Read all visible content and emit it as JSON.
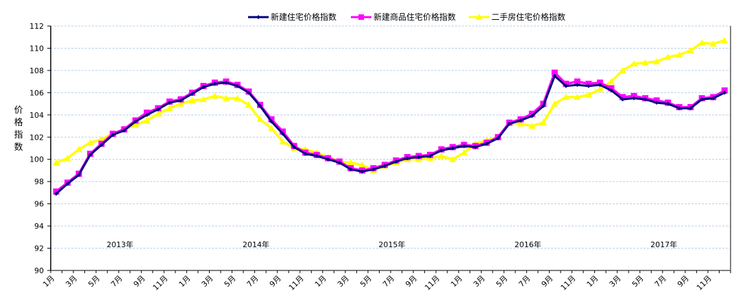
{
  "chart_data": {
    "type": "line",
    "title": "",
    "ylabel": "价格指数",
    "xlabel": "",
    "ylim": [
      90,
      112
    ],
    "yticks": [
      90,
      92,
      94,
      96,
      98,
      100,
      102,
      104,
      106,
      108,
      110,
      112
    ],
    "grid": true,
    "legend_position": "top",
    "x_tick_labels": [
      "1月",
      "3月",
      "5月",
      "7月",
      "9月",
      "11月",
      "1月",
      "3月",
      "5月",
      "7月",
      "9月",
      "11月",
      "1月",
      "3月",
      "5月",
      "7月",
      "9月",
      "11月",
      "1月",
      "3月",
      "5月",
      "7月",
      "9月",
      "11月",
      "1月",
      "3月",
      "5月",
      "7月",
      "9月",
      "11月"
    ],
    "year_labels": [
      "2013年",
      "2014年",
      "2015年",
      "2016年",
      "2017年"
    ],
    "x": [
      "2013-01",
      "2013-02",
      "2013-03",
      "2013-04",
      "2013-05",
      "2013-06",
      "2013-07",
      "2013-08",
      "2013-09",
      "2013-10",
      "2013-11",
      "2013-12",
      "2014-01",
      "2014-02",
      "2014-03",
      "2014-04",
      "2014-05",
      "2014-06",
      "2014-07",
      "2014-08",
      "2014-09",
      "2014-10",
      "2014-11",
      "2014-12",
      "2015-01",
      "2015-02",
      "2015-03",
      "2015-04",
      "2015-05",
      "2015-06",
      "2015-07",
      "2015-08",
      "2015-09",
      "2015-10",
      "2015-11",
      "2015-12",
      "2016-01",
      "2016-02",
      "2016-03",
      "2016-04",
      "2016-05",
      "2016-06",
      "2016-07",
      "2016-08",
      "2016-09",
      "2016-10",
      "2016-11",
      "2016-12",
      "2017-01",
      "2017-02",
      "2017-03",
      "2017-04",
      "2017-05",
      "2017-06",
      "2017-07",
      "2017-08",
      "2017-09",
      "2017-10",
      "2017-11",
      "2017-12"
    ],
    "series": [
      {
        "name": "新建住宅价格指数",
        "color": "#000080",
        "marker": "diamond",
        "values": [
          96.9,
          97.8,
          98.6,
          100.4,
          101.3,
          102.2,
          102.6,
          103.4,
          104.0,
          104.5,
          105.1,
          105.3,
          105.9,
          106.5,
          106.8,
          106.9,
          106.6,
          106.0,
          104.8,
          103.4,
          102.3,
          101.1,
          100.5,
          100.3,
          100.0,
          99.7,
          99.1,
          98.9,
          99.1,
          99.4,
          99.8,
          100.1,
          100.2,
          100.3,
          100.8,
          101.0,
          101.2,
          101.1,
          101.4,
          101.9,
          103.2,
          103.5,
          103.9,
          104.8,
          107.5,
          106.6,
          106.7,
          106.6,
          106.7,
          106.2,
          105.4,
          105.5,
          105.4,
          105.1,
          105.0,
          104.6,
          104.6,
          105.4,
          105.5,
          106.0
        ]
      },
      {
        "name": "新建商品住宅价格指数",
        "color": "#FF00FF",
        "marker": "square",
        "values": [
          97.1,
          97.9,
          98.7,
          100.5,
          101.4,
          102.3,
          102.7,
          103.5,
          104.2,
          104.6,
          105.2,
          105.4,
          106.0,
          106.6,
          106.9,
          107.0,
          106.7,
          106.1,
          104.9,
          103.6,
          102.5,
          101.2,
          100.6,
          100.4,
          100.1,
          99.8,
          99.2,
          99.0,
          99.2,
          99.5,
          99.9,
          100.2,
          100.3,
          100.4,
          100.9,
          101.1,
          101.3,
          101.2,
          101.5,
          102.0,
          103.3,
          103.6,
          104.1,
          105.0,
          107.8,
          106.8,
          107.0,
          106.8,
          106.9,
          106.4,
          105.6,
          105.7,
          105.5,
          105.3,
          105.1,
          104.7,
          104.7,
          105.5,
          105.6,
          106.2
        ]
      },
      {
        "name": "二手房住宅价格指数",
        "color": "#FFFF00",
        "marker": "triangle",
        "values": [
          99.7,
          100.1,
          100.9,
          101.5,
          101.8,
          102.3,
          102.7,
          103.1,
          103.5,
          104.1,
          104.6,
          105.0,
          105.3,
          105.4,
          105.7,
          105.5,
          105.5,
          104.9,
          103.6,
          102.8,
          101.6,
          101.0,
          100.9,
          100.6,
          100.2,
          99.8,
          99.7,
          99.5,
          99.0,
          99.4,
          99.7,
          100.0,
          100.0,
          100.1,
          100.3,
          100.0,
          100.6,
          101.4,
          101.7,
          102.0,
          103.3,
          103.2,
          103.0,
          103.3,
          105.0,
          105.6,
          105.6,
          105.8,
          106.3,
          107.0,
          108.0,
          108.6,
          108.7,
          108.8,
          109.2,
          109.4,
          109.8,
          110.5,
          110.4,
          110.7
        ]
      }
    ]
  }
}
